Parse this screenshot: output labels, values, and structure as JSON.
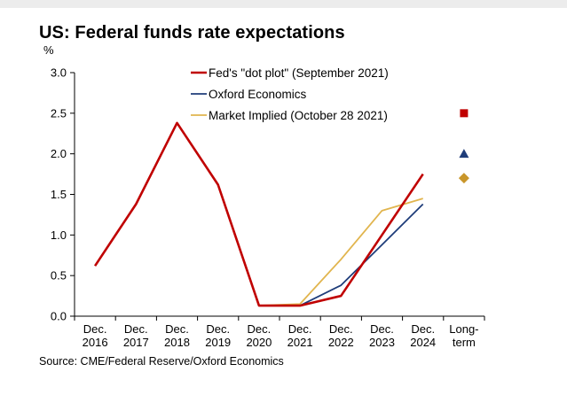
{
  "page": {
    "title": "US: Federal funds rate expectations",
    "source": "Source: CME/Federal Reserve/Oxford Economics"
  },
  "chart_data": {
    "type": "line",
    "title": "US: Federal funds rate expectations",
    "ylabel": "%",
    "xlabel": "",
    "ylim": [
      0,
      3.0
    ],
    "yticks": [
      "0.0",
      "0.5",
      "1.0",
      "1.5",
      "2.0",
      "2.5",
      "3.0"
    ],
    "categories": [
      [
        "Dec.",
        "2016"
      ],
      [
        "Dec.",
        "2017"
      ],
      [
        "Dec.",
        "2018"
      ],
      [
        "Dec.",
        "2019"
      ],
      [
        "Dec.",
        "2020"
      ],
      [
        "Dec.",
        "2021"
      ],
      [
        "Dec.",
        "2022"
      ],
      [
        "Dec.",
        "2023"
      ],
      [
        "Dec.",
        "2024"
      ],
      [
        "Long-",
        "term"
      ]
    ],
    "grid": false,
    "legend_position": "top-center",
    "series": [
      {
        "name": "Fed's \"dot plot\" (September 2021)",
        "color": "#c00000",
        "marker": "square",
        "values": [
          0.62,
          1.38,
          2.38,
          1.62,
          0.13,
          0.13,
          0.25,
          1.0,
          1.75,
          2.5
        ]
      },
      {
        "name": "Oxford Economics",
        "color": "#1f3d7a",
        "marker": "triangle",
        "values": [
          0.62,
          1.38,
          2.38,
          1.62,
          0.13,
          0.13,
          0.38,
          0.88,
          1.38,
          2.0
        ]
      },
      {
        "name": "Market Implied (October 28 2021)",
        "color": "#e1b54e",
        "marker": "diamond",
        "markerColor": "#c9962a",
        "values": [
          0.62,
          1.38,
          2.38,
          1.62,
          0.13,
          0.15,
          0.7,
          1.3,
          1.45,
          1.7
        ]
      }
    ]
  }
}
